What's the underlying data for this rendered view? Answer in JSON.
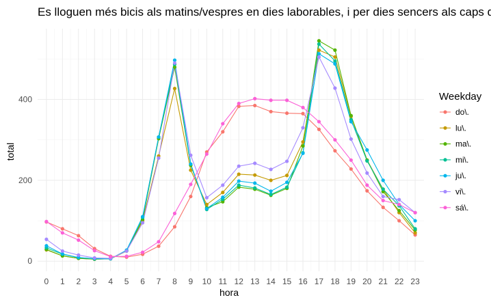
{
  "chart_data": {
    "type": "line",
    "title": "Es lloguen més bicis als matins/vespres en dies laborables, i per dies sencers als caps de setmana",
    "xlabel": "hora",
    "ylabel": "total",
    "x": [
      0,
      1,
      2,
      3,
      4,
      5,
      6,
      7,
      8,
      9,
      10,
      11,
      12,
      13,
      14,
      15,
      16,
      17,
      18,
      19,
      20,
      21,
      22,
      23
    ],
    "x_ticks": [
      "0",
      "1",
      "2",
      "3",
      "4",
      "5",
      "6",
      "7",
      "8",
      "9",
      "10",
      "11",
      "12",
      "13",
      "14",
      "15",
      "16",
      "17",
      "18",
      "19",
      "20",
      "21",
      "22",
      "23"
    ],
    "y_ticks": [
      0,
      200,
      400
    ],
    "ylim": [
      -25,
      575
    ],
    "grid": true,
    "legend_title": "Weekday",
    "legend_position": "right",
    "series": [
      {
        "name": "do\\.",
        "color": "#F8766D",
        "values": [
          97,
          80,
          63,
          31,
          12,
          10,
          17,
          37,
          85,
          160,
          270,
          320,
          383,
          385,
          370,
          366,
          365,
          326,
          273,
          228,
          174,
          133,
          100,
          65
        ]
      },
      {
        "name": "lu\\.",
        "color": "#C49A00",
        "values": [
          28,
          13,
          7,
          5,
          6,
          25,
          100,
          260,
          427,
          225,
          140,
          170,
          215,
          213,
          200,
          212,
          295,
          522,
          505,
          358,
          250,
          178,
          120,
          70
        ]
      },
      {
        "name": "ma\\.",
        "color": "#53B400",
        "values": [
          29,
          13,
          7,
          5,
          6,
          25,
          103,
          303,
          480,
          237,
          132,
          147,
          183,
          178,
          163,
          180,
          285,
          545,
          522,
          360,
          250,
          172,
          125,
          77
        ]
      },
      {
        "name": "mi\\.",
        "color": "#00C094",
        "values": [
          33,
          17,
          9,
          6,
          6,
          27,
          108,
          307,
          487,
          240,
          128,
          153,
          188,
          181,
          165,
          183,
          268,
          537,
          495,
          350,
          248,
          178,
          137,
          80
        ]
      },
      {
        "name": "ju\\.",
        "color": "#00B6EB",
        "values": [
          38,
          18,
          9,
          6,
          6,
          27,
          110,
          307,
          497,
          240,
          130,
          158,
          198,
          193,
          173,
          195,
          267,
          513,
          488,
          345,
          275,
          200,
          140,
          100
        ]
      },
      {
        "name": "vi\\.",
        "color": "#A58AFF",
        "values": [
          54,
          25,
          15,
          8,
          7,
          25,
          95,
          255,
          490,
          262,
          157,
          188,
          235,
          242,
          227,
          247,
          330,
          505,
          428,
          302,
          218,
          160,
          152,
          120
        ]
      },
      {
        "name": "sá\\.",
        "color": "#FB61D7",
        "values": [
          98,
          70,
          52,
          26,
          11,
          12,
          22,
          48,
          118,
          190,
          265,
          340,
          390,
          402,
          398,
          398,
          380,
          345,
          300,
          250,
          188,
          150,
          140,
          120
        ]
      }
    ]
  }
}
